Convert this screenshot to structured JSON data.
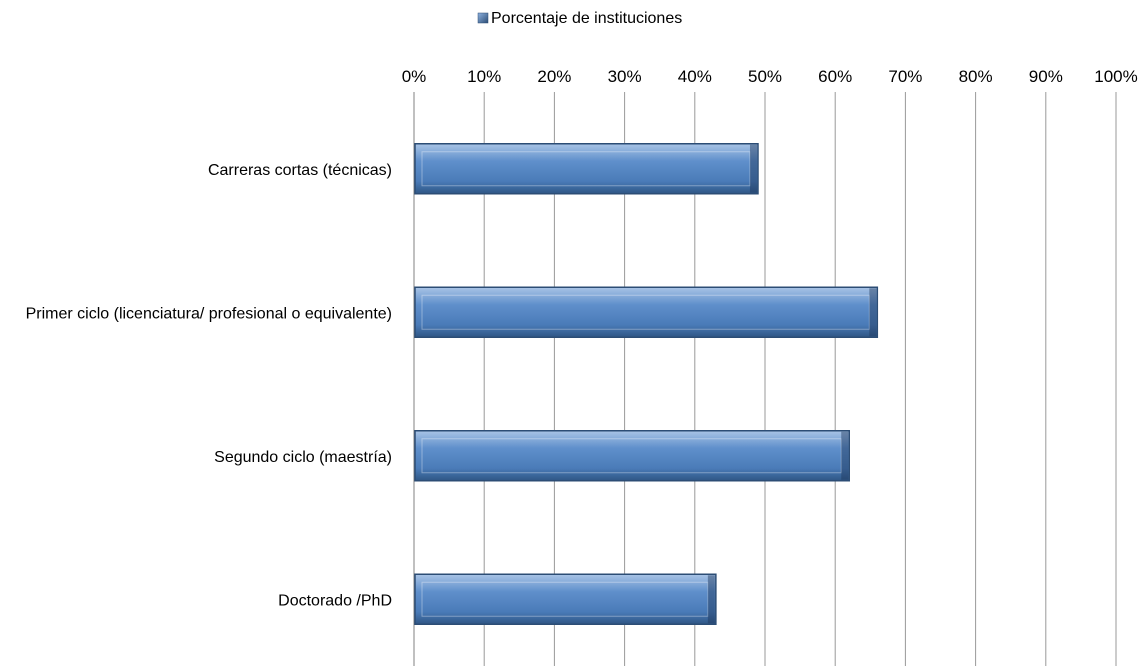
{
  "chart_data": {
    "type": "bar",
    "orientation": "horizontal",
    "categories": [
      "Carreras cortas (técnicas)",
      "Primer ciclo (licenciatura/ profesional o equivalente)",
      "Segundo ciclo (maestría)",
      "Doctorado /PhD"
    ],
    "series": [
      {
        "name": "Porcentaje de instituciones",
        "values": [
          49,
          66,
          62,
          43
        ]
      }
    ],
    "xlim": [
      0,
      100
    ],
    "xticks": [
      "0%",
      "10%",
      "20%",
      "30%",
      "40%",
      "50%",
      "60%",
      "70%",
      "80%",
      "90%",
      "100%"
    ],
    "x_axis_position": "top",
    "grid": true,
    "legend": "top-center",
    "colors": {
      "bar": "#4f81bd",
      "bar_edge": "#2c4d75",
      "grid": "#999999"
    }
  }
}
